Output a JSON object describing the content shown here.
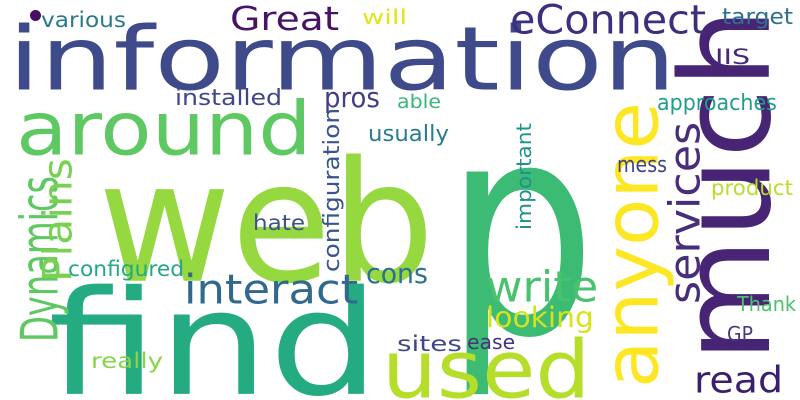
{
  "words": [
    {
      "text": "p",
      "color": "#3cbb75",
      "rotated": false
    },
    {
      "text": "web",
      "color": "#95d840",
      "rotated": false
    },
    {
      "text": "information",
      "color": "#3e4a89",
      "rotated": false
    },
    {
      "text": "find",
      "color": "#25ab82",
      "rotated": false
    },
    {
      "text": "much",
      "color": "#482475",
      "rotated": true
    },
    {
      "text": "anyone",
      "color": "#fde725",
      "rotated": true
    },
    {
      "text": "used",
      "color": "#b5de2b",
      "rotated": false
    },
    {
      "text": "around",
      "color": "#5ec962",
      "rotated": false
    },
    {
      "text": "write",
      "color": "#4ac16d",
      "rotated": false
    },
    {
      "text": "services",
      "color": "#472d7b",
      "rotated": true
    },
    {
      "text": "eConnect",
      "color": "#3b2f7f",
      "rotated": false
    },
    {
      "text": "Great",
      "color": "#471365",
      "rotated": false
    },
    {
      "text": "interact",
      "color": "#31688e",
      "rotated": false
    },
    {
      "text": "Dynamics",
      "color": "#5ec962",
      "rotated": true
    },
    {
      "text": "Plains",
      "color": "#7ad151",
      "rotated": true
    },
    {
      "text": "read",
      "color": "#3b1f6e",
      "rotated": false
    },
    {
      "text": "looking",
      "color": "#d8e219",
      "rotated": false
    },
    {
      "text": "cons",
      "color": "#2c728e",
      "rotated": false
    },
    {
      "text": "pros",
      "color": "#433e85",
      "rotated": false
    },
    {
      "text": "configuration",
      "color": "#39568c",
      "rotated": true
    },
    {
      "text": "important",
      "color": "#21918c",
      "rotated": true
    },
    {
      "text": "approaches",
      "color": "#1f9e89",
      "rotated": false
    },
    {
      "text": "various",
      "color": "#2a788e",
      "rotated": false
    },
    {
      "text": "installed",
      "color": "#404688",
      "rotated": false
    },
    {
      "text": "usually",
      "color": "#287d8e",
      "rotated": false
    },
    {
      "text": "configured",
      "color": "#22a884",
      "rotated": false
    },
    {
      "text": "hate",
      "color": "#3b528b",
      "rotated": false
    },
    {
      "text": "product",
      "color": "#b8de29",
      "rotated": false
    },
    {
      "text": "mess",
      "color": "#404387",
      "rotated": false
    },
    {
      "text": "target",
      "color": "#2c728e",
      "rotated": false
    },
    {
      "text": "IIS",
      "color": "#482878",
      "rotated": false
    },
    {
      "text": "will",
      "color": "#e5e419",
      "rotated": false
    },
    {
      "text": "able",
      "color": "#35b779",
      "rotated": false
    },
    {
      "text": "sites",
      "color": "#3f4788",
      "rotated": false
    },
    {
      "text": "ease",
      "color": "#46337e",
      "rotated": false
    },
    {
      "text": "really",
      "color": "#86d549",
      "rotated": false
    },
    {
      "text": "Thank",
      "color": "#4ac16d",
      "rotated": false
    },
    {
      "text": "GP",
      "color": "#443983",
      "rotated": false
    },
    {
      "text": "dot",
      "color": "#471063",
      "rotated": false
    }
  ]
}
